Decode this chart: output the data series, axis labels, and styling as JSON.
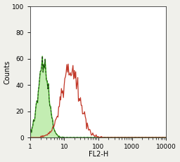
{
  "title": "",
  "xlabel": "FL2-H",
  "ylabel": "Counts",
  "xlim_log": [
    1,
    10000
  ],
  "ylim": [
    0,
    100
  ],
  "yticks": [
    0,
    20,
    40,
    60,
    80,
    100
  ],
  "plot_bg_color": "#ffffff",
  "fig_bg_color": "#f0f0eb",
  "green_fill_color": "#88dd66",
  "green_fill_alpha": 0.5,
  "green_line_color": "#22aa00",
  "black_line_color": "#1a1a1a",
  "red_line_color": "#bb2211",
  "green_peak_log": 0.38,
  "green_peak_y": 62,
  "green_sigma_log": 0.16,
  "red_peak_log": 1.18,
  "red_peak_y": 56,
  "red_sigma_log": 0.27,
  "figsize": [
    2.56,
    2.31
  ],
  "dpi": 100
}
